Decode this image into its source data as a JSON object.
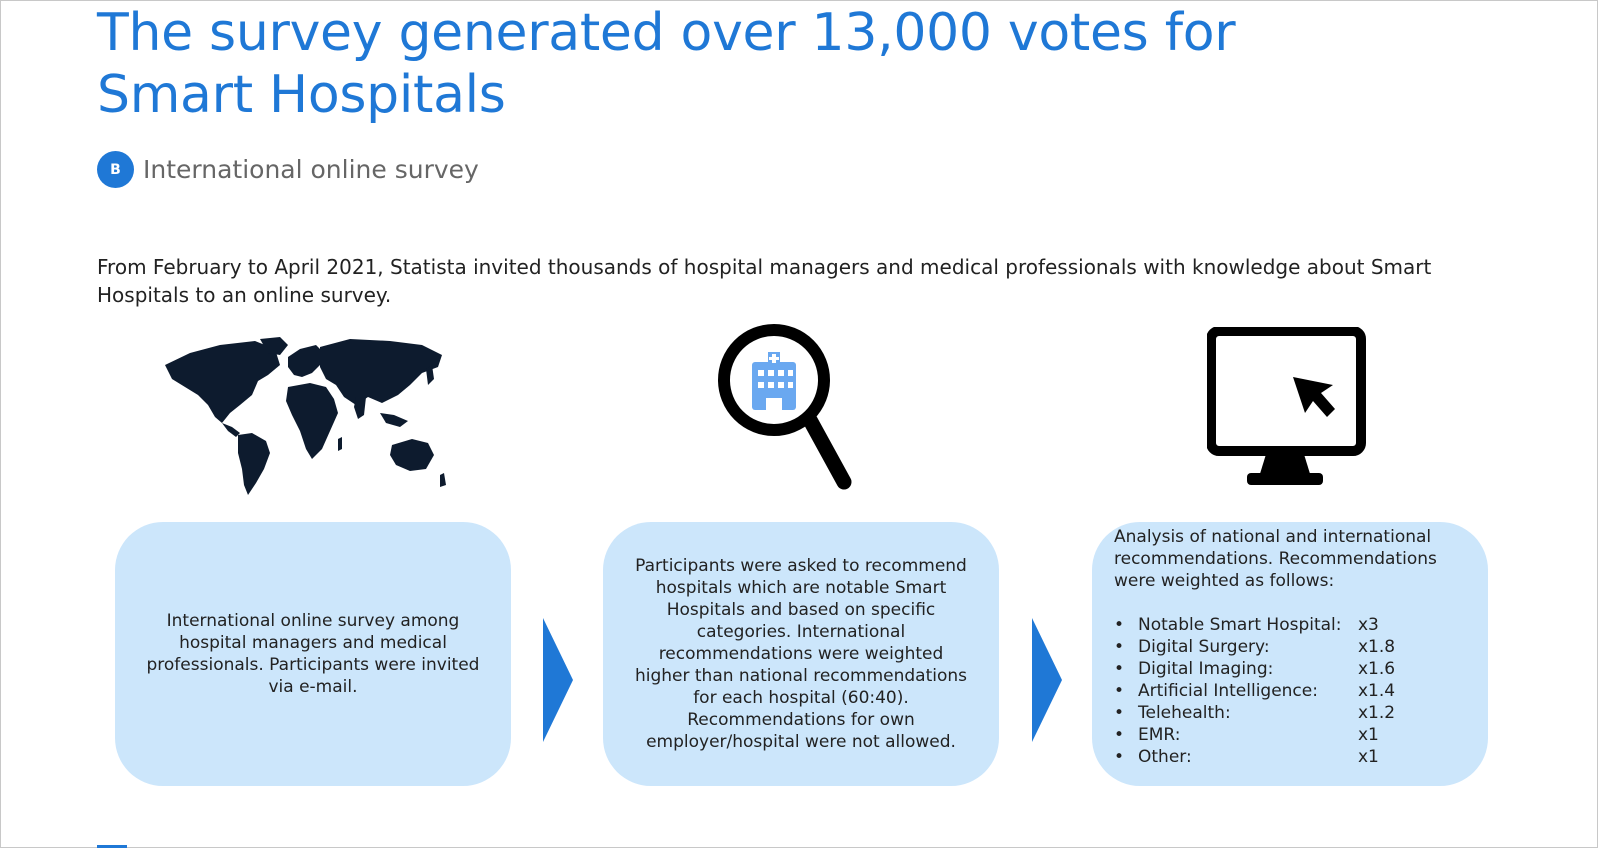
{
  "title": "The survey generated over 13,000 votes for Smart Hospitals",
  "subtitle": {
    "badge": "B",
    "text": "International online survey"
  },
  "intro": "From February to April 2021, Statista invited thousands of hospital managers and medical professionals with knowledge about Smart Hospitals to an online survey.",
  "icons": [
    "world-map-icon",
    "hospital-magnifier-icon",
    "monitor-cursor-icon",
    "chevron-right-icon"
  ],
  "steps": [
    {
      "text": "International online survey among hospital managers and medical professionals. Participants were invited via e-mail."
    },
    {
      "text": "Participants were asked to recommend hospitals which are notable Smart Hospitals and based on specific categories. International recommendations were weighted higher than national recommendations for each hospital (60:40). Recommendations for own employer/hospital were not allowed."
    },
    {
      "intro": "Analysis of national and international recommendations. Recommendations were weighted as follows:",
      "weights": [
        {
          "label": "Notable Smart Hospital:",
          "value": "x3"
        },
        {
          "label": "Digital Surgery:",
          "value": "x1.8"
        },
        {
          "label": "Digital Imaging:",
          "value": "x1.6"
        },
        {
          "label": "Artificial Intelligence:",
          "value": "x1.4"
        },
        {
          "label": "Telehealth:",
          "value": "x1.2"
        },
        {
          "label": "EMR:",
          "value": "x1"
        },
        {
          "label": "Other:",
          "value": "x1"
        }
      ]
    }
  ],
  "colors": {
    "accent": "#1f78d6",
    "box": "#cce6fb",
    "icon": "#0d1b2e"
  }
}
